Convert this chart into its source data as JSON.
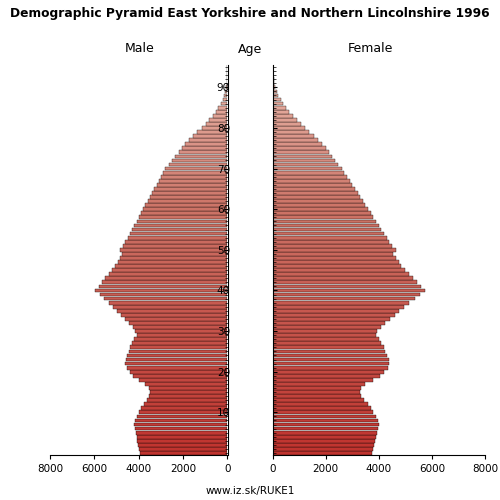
{
  "title": "Demographic Pyramid East Yorkshire and Northern Lincolnshire 1996",
  "label_male": "Male",
  "label_female": "Female",
  "label_age": "Age",
  "watermark": "www.iz.sk/RUKE1",
  "xlim": 8000,
  "ages": [
    0,
    1,
    2,
    3,
    4,
    5,
    6,
    7,
    8,
    9,
    10,
    11,
    12,
    13,
    14,
    15,
    16,
    17,
    18,
    19,
    20,
    21,
    22,
    23,
    24,
    25,
    26,
    27,
    28,
    29,
    30,
    31,
    32,
    33,
    34,
    35,
    36,
    37,
    38,
    39,
    40,
    41,
    42,
    43,
    44,
    45,
    46,
    47,
    48,
    49,
    50,
    51,
    52,
    53,
    54,
    55,
    56,
    57,
    58,
    59,
    60,
    61,
    62,
    63,
    64,
    65,
    66,
    67,
    68,
    69,
    70,
    71,
    72,
    73,
    74,
    75,
    76,
    77,
    78,
    79,
    80,
    81,
    82,
    83,
    84,
    85,
    86,
    87,
    88,
    89,
    90,
    91,
    92,
    93,
    94,
    95
  ],
  "male": [
    3950,
    3980,
    4020,
    4060,
    4100,
    4140,
    4180,
    4200,
    4180,
    4100,
    4000,
    3900,
    3780,
    3650,
    3550,
    3480,
    3520,
    3700,
    4000,
    4250,
    4400,
    4550,
    4600,
    4580,
    4520,
    4450,
    4380,
    4300,
    4200,
    4100,
    4150,
    4280,
    4450,
    4620,
    4800,
    4980,
    5150,
    5350,
    5550,
    5750,
    5950,
    5800,
    5650,
    5500,
    5350,
    5200,
    5050,
    4950,
    4850,
    4750,
    4850,
    4700,
    4600,
    4500,
    4400,
    4300,
    4200,
    4100,
    4000,
    3900,
    3800,
    3700,
    3600,
    3500,
    3400,
    3300,
    3200,
    3100,
    3000,
    2900,
    2800,
    2650,
    2500,
    2350,
    2200,
    2050,
    1900,
    1720,
    1540,
    1360,
    1150,
    980,
    820,
    670,
    530,
    410,
    310,
    225,
    155,
    100,
    65,
    40,
    24,
    14,
    8,
    4
  ],
  "female": [
    3750,
    3780,
    3820,
    3860,
    3900,
    3940,
    3980,
    4000,
    3980,
    3900,
    3800,
    3700,
    3580,
    3450,
    3350,
    3280,
    3320,
    3500,
    3800,
    4050,
    4200,
    4350,
    4400,
    4380,
    4320,
    4250,
    4180,
    4100,
    4000,
    3900,
    3950,
    4080,
    4250,
    4420,
    4600,
    4780,
    4950,
    5150,
    5350,
    5550,
    5750,
    5600,
    5450,
    5300,
    5150,
    5000,
    4850,
    4750,
    4650,
    4550,
    4650,
    4500,
    4400,
    4300,
    4200,
    4100,
    4000,
    3900,
    3800,
    3700,
    3600,
    3500,
    3400,
    3300,
    3200,
    3100,
    3000,
    2900,
    2800,
    2700,
    2600,
    2480,
    2360,
    2240,
    2120,
    2000,
    1870,
    1720,
    1560,
    1390,
    1220,
    1060,
    910,
    770,
    630,
    510,
    400,
    305,
    220,
    155,
    105,
    68,
    42,
    25,
    14,
    7
  ]
}
